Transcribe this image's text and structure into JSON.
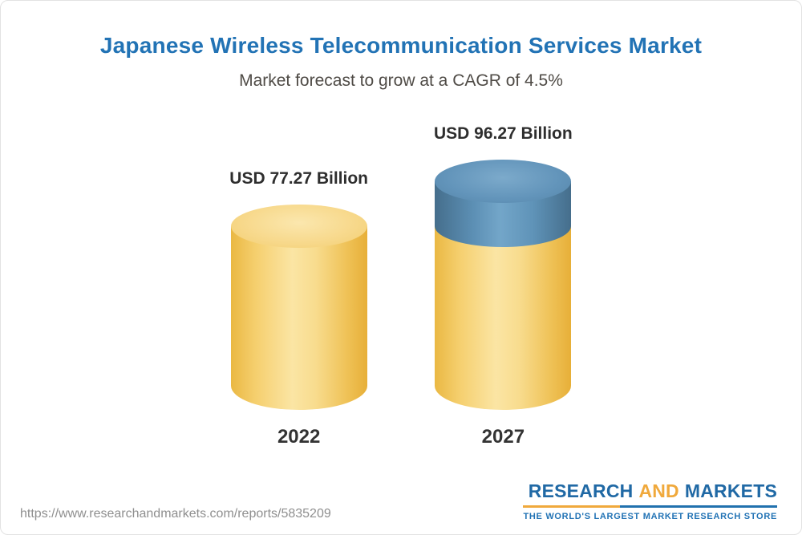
{
  "header": {
    "title": "Japanese Wireless Telecommunication Services Market",
    "subtitle": "Market forecast to grow at a CAGR of 4.5%"
  },
  "chart_data": {
    "type": "bar",
    "bar_style": "cylinder-3d",
    "categories": [
      "2022",
      "2027"
    ],
    "values": [
      77.27,
      96.27
    ],
    "value_labels": [
      "USD 77.27 Billion",
      "USD 96.27 Billion"
    ],
    "unit": "USD Billion",
    "cagr_percent": 4.5,
    "title": "Japanese Wireless Telecommunication Services Market",
    "subtitle": "Market forecast to grow at a CAGR of 4.5%",
    "grid": false,
    "legend_position": "none",
    "colors": {
      "base_segment": "#f6ce6b",
      "growth_segment": "#5e8fb5"
    }
  },
  "footer": {
    "source_url": "https://www.researchandmarkets.com/reports/5835209",
    "logo": {
      "word1": "RESEARCH",
      "word2": "AND",
      "word3": "MARKETS",
      "tagline": "THE WORLD'S LARGEST MARKET RESEARCH STORE"
    }
  }
}
